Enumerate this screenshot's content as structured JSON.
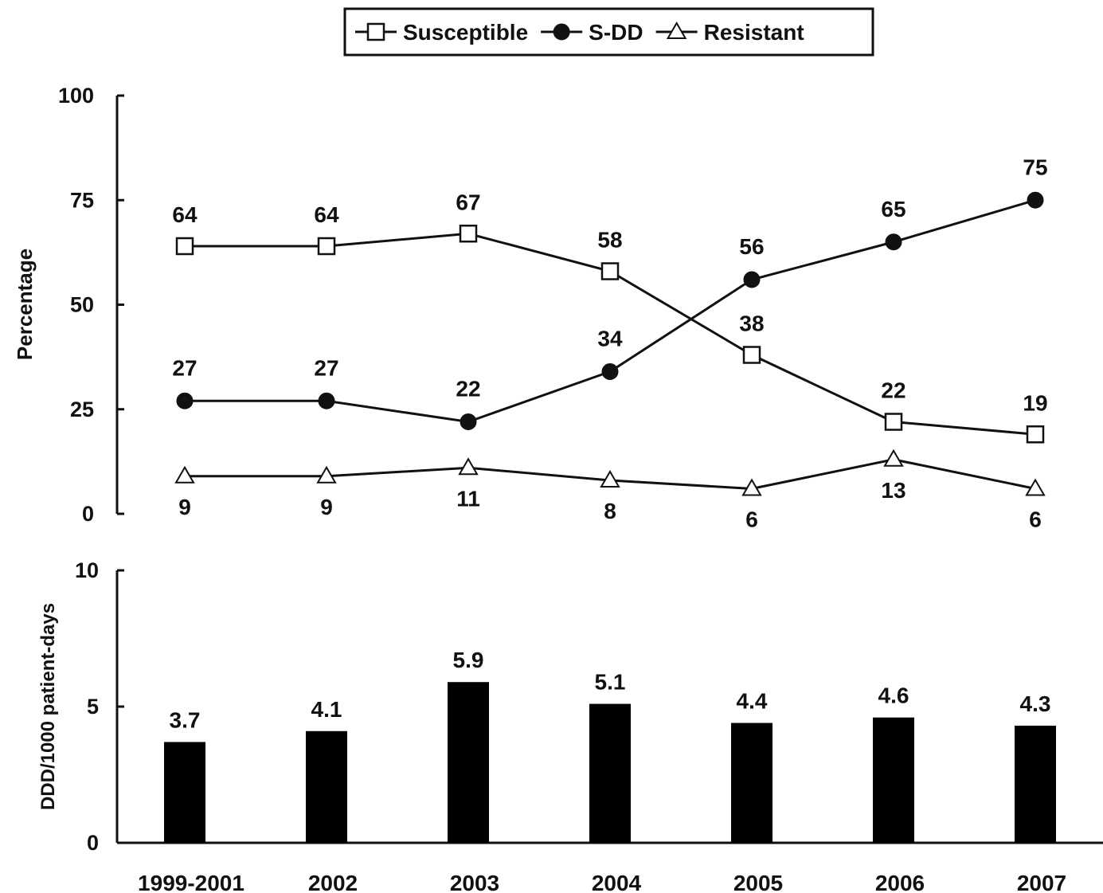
{
  "chart_data": [
    {
      "type": "line",
      "categories": [
        "1999-2001",
        "2002",
        "2003",
        "2004",
        "2005",
        "2006",
        "2007"
      ],
      "series": [
        {
          "name": "Susceptible",
          "marker": "open-square",
          "values": [
            64,
            64,
            67,
            58,
            38,
            22,
            19
          ]
        },
        {
          "name": "S-DD",
          "marker": "filled-circle",
          "values": [
            27,
            27,
            22,
            34,
            56,
            65,
            75
          ]
        },
        {
          "name": "Resistant",
          "marker": "open-triangle",
          "values": [
            9,
            9,
            11,
            8,
            6,
            13,
            6
          ]
        }
      ],
      "ylabel": "Percentage",
      "ylim": [
        0,
        100
      ],
      "yticks": [
        "0",
        "25",
        "50",
        "75",
        "100"
      ],
      "grid": false,
      "legend": "top-center"
    },
    {
      "type": "bar",
      "categories": [
        "1999-2001",
        "2002",
        "2003",
        "2004",
        "2005",
        "2006",
        "2007"
      ],
      "values": [
        3.7,
        4.1,
        5.9,
        5.1,
        4.4,
        4.6,
        4.3
      ],
      "value_labels": [
        "3.7",
        "4.1",
        "5.9",
        "5.1",
        "4.4",
        "4.6",
        "4.3"
      ],
      "ylabel": "DDD/1000 patient-days",
      "ylim": [
        0,
        10
      ],
      "yticks": [
        "0",
        "5",
        "10"
      ],
      "grid": false,
      "bar_color": "#000000"
    }
  ]
}
